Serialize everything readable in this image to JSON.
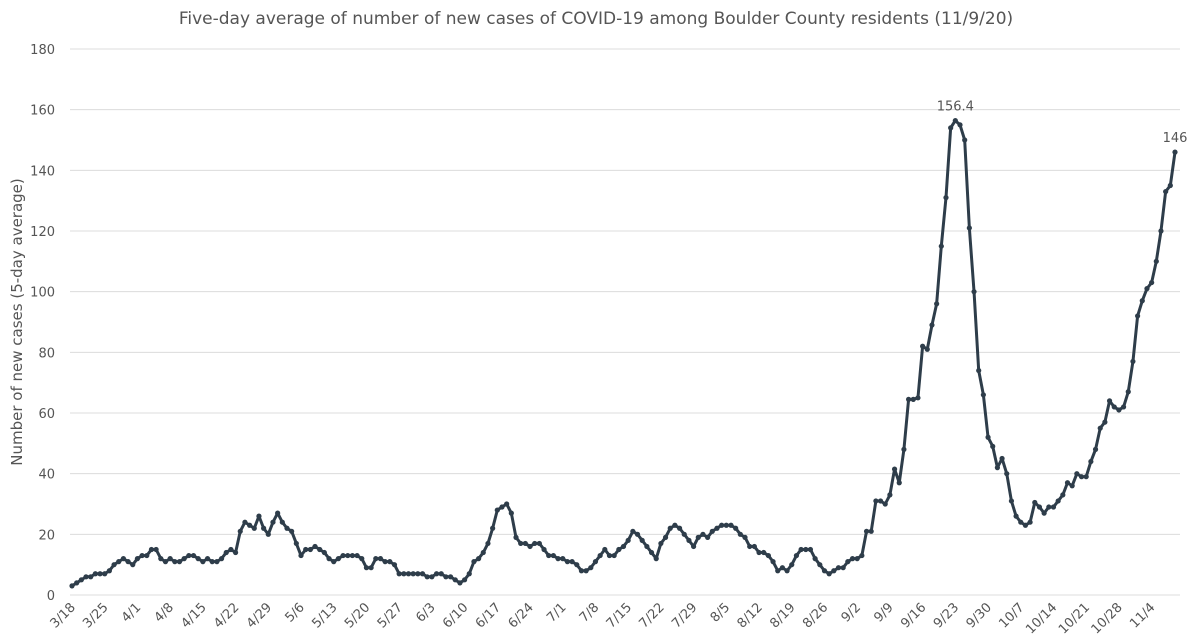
{
  "chart_data": {
    "type": "line",
    "title": "Five-day average of number of new cases of COVID-19 among Boulder County residents (11/9/20)",
    "y_label": "Number of new cases (5-day average)",
    "categories": [
      "3/18",
      null,
      null,
      null,
      null,
      null,
      null,
      "3/25",
      null,
      null,
      null,
      null,
      null,
      null,
      "4/1",
      null,
      null,
      null,
      null,
      null,
      null,
      "4/8",
      null,
      null,
      null,
      null,
      null,
      null,
      "4/15",
      null,
      null,
      null,
      null,
      null,
      null,
      "4/22",
      null,
      null,
      null,
      null,
      null,
      null,
      "4/29",
      null,
      null,
      null,
      null,
      null,
      null,
      "5/6",
      null,
      null,
      null,
      null,
      null,
      null,
      "5/13",
      null,
      null,
      null,
      null,
      null,
      null,
      "5/20",
      null,
      null,
      null,
      null,
      null,
      null,
      "5/27",
      null,
      null,
      null,
      null,
      null,
      null,
      "6/3",
      null,
      null,
      null,
      null,
      null,
      null,
      "6/10",
      null,
      null,
      null,
      null,
      null,
      null,
      "6/17",
      null,
      null,
      null,
      null,
      null,
      null,
      "6/24",
      null,
      null,
      null,
      null,
      null,
      null,
      "7/1",
      null,
      null,
      null,
      null,
      null,
      null,
      "7/8",
      null,
      null,
      null,
      null,
      null,
      null,
      "7/15",
      null,
      null,
      null,
      null,
      null,
      null,
      "7/22",
      null,
      null,
      null,
      null,
      null,
      null,
      "7/29",
      null,
      null,
      null,
      null,
      null,
      null,
      "8/5",
      null,
      null,
      null,
      null,
      null,
      null,
      "8/12",
      null,
      null,
      null,
      null,
      null,
      null,
      "8/19",
      null,
      null,
      null,
      null,
      null,
      null,
      "8/26",
      null,
      null,
      null,
      null,
      null,
      null,
      "9/2",
      null,
      null,
      null,
      null,
      null,
      null,
      "9/9",
      null,
      null,
      null,
      null,
      null,
      null,
      "9/16",
      null,
      null,
      null,
      null,
      null,
      null,
      "9/23",
      null,
      null,
      null,
      null,
      null,
      null,
      "9/30",
      null,
      null,
      null,
      null,
      null,
      null,
      "10/7",
      null,
      null,
      null,
      null,
      null,
      null,
      "10/14",
      null,
      null,
      null,
      null,
      null,
      null,
      "10/21",
      null,
      null,
      null,
      null,
      null,
      null,
      "10/28",
      null,
      null,
      null,
      null,
      null,
      null,
      "11/4",
      null,
      null,
      null,
      null,
      null
    ],
    "series": [
      {
        "name": "Five-day average",
        "color": "#2e3d4a",
        "values": [
          3,
          4,
          5,
          6,
          6,
          7,
          7,
          7,
          8,
          10,
          11,
          12,
          11,
          10,
          12,
          13,
          13,
          15,
          15,
          12,
          11,
          12,
          11,
          11,
          12,
          13,
          13,
          12,
          11,
          12,
          11,
          11,
          12,
          14,
          15,
          14,
          21,
          24,
          23,
          22,
          26,
          22,
          20,
          24,
          27,
          24,
          22,
          21,
          17,
          13,
          15,
          15,
          16,
          15,
          14,
          12,
          11,
          12,
          13,
          13,
          13,
          13,
          12,
          9,
          9,
          12,
          12,
          11,
          11,
          10,
          7,
          7,
          7,
          7,
          7,
          7,
          6,
          6,
          7,
          7,
          6,
          6,
          5,
          4,
          5,
          7,
          11,
          12,
          14,
          17,
          22,
          28,
          29,
          30,
          27,
          19,
          17,
          17,
          16,
          17,
          17,
          15,
          13,
          13,
          12,
          12,
          11,
          11,
          10,
          8,
          8,
          9,
          11,
          13,
          15,
          13,
          13,
          15,
          16,
          18,
          21,
          20,
          18,
          16,
          14,
          12,
          17,
          19,
          22,
          23,
          22,
          20,
          18,
          16,
          19,
          20,
          19,
          21,
          22,
          23,
          23,
          23,
          22,
          20,
          19,
          16,
          16,
          14,
          14,
          13,
          11,
          8,
          9,
          8,
          10,
          13,
          15,
          15,
          15,
          12,
          10,
          8,
          7,
          8,
          9,
          9,
          11,
          12,
          12,
          13,
          21,
          21,
          31,
          31,
          30,
          33,
          41.5,
          37,
          48,
          64.5,
          64.5,
          65,
          82,
          81,
          89,
          96,
          115,
          131,
          154,
          156.4,
          155,
          150,
          121,
          100,
          74,
          66,
          52,
          49,
          42,
          45,
          40,
          31,
          26,
          24,
          23,
          24,
          30.5,
          29,
          27,
          29,
          29,
          31,
          33,
          37,
          36,
          40,
          39,
          39,
          44,
          48,
          55,
          57,
          64,
          62,
          61,
          62,
          67,
          77,
          92,
          97,
          101,
          103,
          110,
          120,
          133,
          135,
          146
        ],
        "value_labels": [
          null,
          null,
          null,
          null,
          null,
          null,
          null,
          null,
          null,
          null,
          null,
          null,
          null,
          null,
          null,
          null,
          null,
          null,
          null,
          null,
          null,
          null,
          null,
          null,
          null,
          null,
          null,
          null,
          null,
          null,
          null,
          null,
          null,
          null,
          null,
          null,
          null,
          null,
          null,
          null,
          null,
          null,
          null,
          null,
          null,
          null,
          null,
          null,
          null,
          null,
          null,
          null,
          null,
          null,
          null,
          null,
          null,
          null,
          null,
          null,
          null,
          null,
          null,
          null,
          null,
          null,
          null,
          null,
          null,
          null,
          null,
          null,
          null,
          null,
          null,
          null,
          null,
          null,
          null,
          null,
          null,
          null,
          null,
          null,
          null,
          null,
          null,
          null,
          null,
          null,
          null,
          null,
          null,
          null,
          null,
          null,
          null,
          null,
          null,
          null,
          null,
          null,
          null,
          null,
          null,
          null,
          null,
          null,
          null,
          null,
          null,
          null,
          null,
          null,
          null,
          null,
          null,
          null,
          null,
          null,
          null,
          null,
          null,
          null,
          null,
          null,
          null,
          null,
          null,
          null,
          null,
          null,
          null,
          null,
          null,
          null,
          null,
          null,
          null,
          null,
          null,
          null,
          null,
          null,
          null,
          null,
          null,
          null,
          null,
          null,
          null,
          null,
          null,
          null,
          null,
          null,
          null,
          null,
          null,
          null,
          null,
          null,
          null,
          null,
          null,
          null,
          null,
          null,
          null,
          null,
          null,
          null,
          null,
          null,
          null,
          null,
          null,
          null,
          null,
          null,
          null,
          null,
          null,
          null,
          null,
          null,
          null,
          null,
          null,
          "156.4",
          null,
          null,
          null,
          null,
          null,
          null,
          null,
          null,
          null,
          null,
          null,
          null,
          null,
          null,
          null,
          null,
          null,
          null,
          null,
          null,
          null,
          null,
          null,
          null,
          null,
          null,
          null,
          null,
          null,
          null,
          null,
          null,
          null,
          null,
          null,
          null,
          null,
          null,
          null,
          null,
          null,
          null,
          null,
          null,
          null,
          null,
          "146"
        ]
      }
    ],
    "ylim": [
      0,
      180
    ],
    "yticks": [
      0,
      20,
      40,
      60,
      80,
      100,
      120,
      140,
      160,
      180
    ],
    "grid": true
  }
}
